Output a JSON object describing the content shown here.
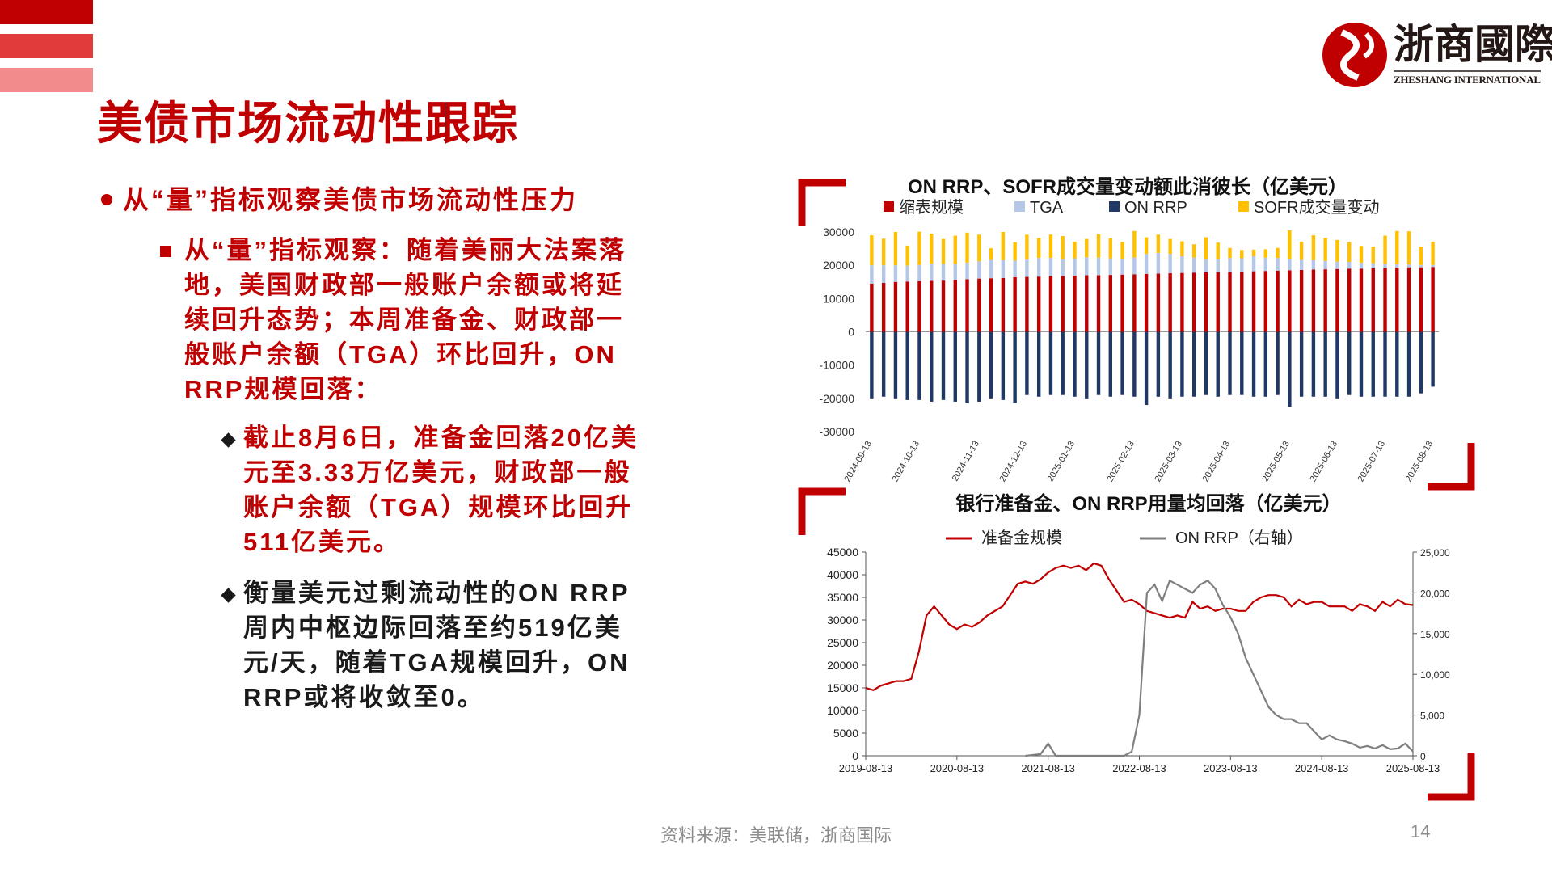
{
  "header": {
    "title": "美债市场流动性跟踪"
  },
  "logo": {
    "name": "浙商國際",
    "subtitle": "ZHESHANG INTERNATIONAL"
  },
  "bullets": {
    "heading": "从“量”指标观察美债市场流动性压力",
    "point": "从“量”指标观察：随着美丽大法案落地，美国财政部一般账户余额或将延续回升态势；本周准备金、财政部一般账户余额（TGA）环比回升，ON RRP规模回落：",
    "details": [
      "截止8月6日，准备金回落20亿美元至3.33万亿美元，财政部一般账户余额（TGA）规模环比回升511亿美元。",
      "衡量美元过剩流动性的ON RRP周内中枢边际回落至约519亿美元/天，随着TGA规模回升，ON RRP或将收敛至0。"
    ]
  },
  "chart_data": [
    {
      "type": "bar",
      "stacked": true,
      "grid": false,
      "title": "ON RRP、SOFR成交量变动额此消彼长（亿美元）",
      "categories": [
        "2024-09-13",
        null,
        null,
        null,
        "2024-10-13",
        null,
        null,
        null,
        null,
        "2024-11-13",
        null,
        null,
        null,
        "2024-12-13",
        null,
        null,
        null,
        "2025-01-13",
        null,
        null,
        null,
        null,
        "2025-02-13",
        null,
        null,
        null,
        "2025-03-13",
        null,
        null,
        null,
        "2025-04-13",
        null,
        null,
        null,
        null,
        "2025-05-13",
        null,
        null,
        null,
        "2025-06-13",
        null,
        null,
        null,
        "2025-07-13",
        null,
        null,
        null,
        "2025-08-13"
      ],
      "series": [
        {
          "name": "缩表规模",
          "color": "#c00000",
          "values": [
            14500,
            14700,
            15000,
            15100,
            15200,
            15300,
            15400,
            15600,
            15800,
            16000,
            16100,
            16200,
            16400,
            16500,
            16600,
            16700,
            16800,
            16900,
            17000,
            17000,
            17100,
            17200,
            17300,
            17400,
            17500,
            17600,
            17700,
            17800,
            17900,
            18000,
            18000,
            18100,
            18200,
            18300,
            18400,
            18500,
            18600,
            18700,
            18800,
            18900,
            19000,
            19000,
            19100,
            19200,
            19300,
            19400,
            19400,
            19500
          ]
        },
        {
          "name": "TGA",
          "color": "#b4c7e7",
          "values": [
            5500,
            5300,
            5000,
            4800,
            4900,
            5200,
            5000,
            4800,
            5000,
            5200,
            5500,
            5300,
            5000,
            5200,
            5600,
            5500,
            5000,
            5200,
            5400,
            5300,
            5000,
            4800,
            5000,
            6000,
            6200,
            5800,
            5000,
            4500,
            4000,
            3800,
            4200,
            4000,
            4500,
            4000,
            3800,
            3500,
            3000,
            2800,
            2500,
            2200,
            2000,
            1800,
            1500,
            1200,
            1000,
            800,
            700,
            600
          ]
        },
        {
          "name": "ON RRP",
          "color": "#1f3864",
          "values": [
            -20000,
            -19500,
            -20000,
            -20500,
            -20500,
            -21000,
            -20500,
            -21000,
            -21500,
            -21000,
            -20000,
            -20500,
            -21500,
            -19000,
            -19500,
            -19000,
            -19000,
            -19500,
            -20000,
            -19000,
            -19500,
            -19000,
            -19500,
            -22000,
            -19500,
            -20000,
            -19500,
            -19500,
            -19000,
            -19500,
            -19000,
            -19000,
            -19500,
            -19500,
            -19000,
            -22500,
            -19500,
            -19500,
            -19500,
            -20000,
            -19000,
            -19500,
            -19500,
            -19500,
            -19500,
            -19500,
            -18500,
            -16500
          ]
        },
        {
          "name": "SOFR成交量变动",
          "color": "#ffc000",
          "values": [
            9000,
            8000,
            10000,
            6000,
            10000,
            9000,
            7500,
            8500,
            9000,
            8000,
            3500,
            8500,
            5500,
            7500,
            6000,
            7000,
            7000,
            5000,
            5500,
            7000,
            6000,
            5000,
            8000,
            5000,
            5500,
            4500,
            4500,
            4000,
            6500,
            5000,
            3000,
            2500,
            2000,
            2500,
            3000,
            8500,
            5500,
            7500,
            7000,
            6500,
            6000,
            5000,
            5000,
            8500,
            10000,
            10000,
            5500,
            7000
          ]
        }
      ],
      "ylim": [
        -30000,
        30000
      ],
      "yticks": [
        -30000,
        -20000,
        -10000,
        0,
        10000,
        20000,
        30000
      ]
    },
    {
      "type": "line",
      "grid": false,
      "title": "银行准备金、ON RRP用量均回落（亿美元）",
      "x": [
        "2019-08-13",
        "2019-09-13",
        "2019-10-13",
        "2019-11-13",
        "2019-12-13",
        "2020-01-13",
        "2020-02-13",
        "2020-03-13",
        "2020-04-13",
        "2020-05-13",
        "2020-06-13",
        "2020-07-13",
        "2020-08-13",
        "2020-09-13",
        "2020-10-13",
        "2020-11-13",
        "2020-12-13",
        "2021-01-13",
        "2021-02-13",
        "2021-03-13",
        "2021-04-13",
        "2021-05-13",
        "2021-06-13",
        "2021-07-13",
        "2021-08-13",
        "2021-09-13",
        "2021-10-13",
        "2021-11-13",
        "2021-12-13",
        "2022-01-13",
        "2022-02-13",
        "2022-03-13",
        "2022-04-13",
        "2022-05-13",
        "2022-06-13",
        "2022-07-13",
        "2022-08-13",
        "2022-09-13",
        "2022-10-13",
        "2022-11-13",
        "2022-12-13",
        "2023-01-13",
        "2023-02-13",
        "2023-03-13",
        "2023-04-13",
        "2023-05-13",
        "2023-06-13",
        "2023-07-13",
        "2023-08-13",
        "2023-09-13",
        "2023-10-13",
        "2023-11-13",
        "2023-12-13",
        "2024-01-13",
        "2024-02-13",
        "2024-03-13",
        "2024-04-13",
        "2024-05-13",
        "2024-06-13",
        "2024-07-13",
        "2024-08-13",
        "2024-09-13",
        "2024-10-13",
        "2024-11-13",
        "2024-12-13",
        "2025-01-13",
        "2025-02-13",
        "2025-03-13",
        "2025-04-13",
        "2025-05-13",
        "2025-06-13",
        "2025-07-13",
        "2025-08-13"
      ],
      "series": [
        {
          "name": "准备金规模",
          "color": "#c00000",
          "values": [
            15000,
            14500,
            15500,
            16000,
            16500,
            16500,
            17000,
            23000,
            31000,
            33000,
            31000,
            29000,
            28000,
            29000,
            28500,
            29500,
            31000,
            32000,
            33000,
            35500,
            38000,
            38500,
            38000,
            39000,
            40500,
            41500,
            42000,
            41500,
            42000,
            41000,
            42500,
            42000,
            39000,
            36500,
            34000,
            34500,
            33500,
            32000,
            31500,
            31000,
            30500,
            31000,
            30500,
            34000,
            32500,
            33000,
            32000,
            32500,
            32500,
            32000,
            32000,
            34000,
            35000,
            35500,
            35500,
            35000,
            33000,
            34500,
            33500,
            34000,
            34000,
            33000,
            33000,
            33000,
            32000,
            33500,
            33000,
            32000,
            34000,
            33000,
            34500,
            33500,
            33300
          ]
        },
        {
          "name": "ON RRP（右轴）",
          "color": "#7f7f7f",
          "axis": "y2",
          "values": [
            null,
            null,
            null,
            null,
            null,
            null,
            null,
            null,
            null,
            null,
            null,
            null,
            null,
            null,
            null,
            null,
            null,
            null,
            null,
            null,
            null,
            0,
            100,
            200,
            1500,
            0,
            0,
            0,
            0,
            0,
            0,
            0,
            0,
            0,
            0,
            500,
            5000,
            20000,
            21000,
            19000,
            21500,
            21000,
            20500,
            20000,
            21000,
            21500,
            20500,
            18500,
            17000,
            15000,
            12000,
            10000,
            8000,
            6000,
            5000,
            4500,
            4500,
            4000,
            4000,
            3000,
            2000,
            2500,
            2000,
            1800,
            1500,
            1000,
            1200,
            900,
            1300,
            800,
            900,
            1500,
            519
          ]
        }
      ],
      "xticks": [
        "2019-08-13",
        "2020-08-13",
        "2021-08-13",
        "2022-08-13",
        "2023-08-13",
        "2024-08-13",
        "2025-08-13"
      ],
      "ylim": [
        0,
        45000
      ],
      "yticks": [
        0,
        5000,
        10000,
        15000,
        20000,
        25000,
        30000,
        35000,
        40000,
        45000
      ],
      "y2lim": [
        0,
        25000
      ],
      "y2ticks": [
        0,
        {
          "value": 5000,
          "label": "5,000"
        },
        {
          "value": 10000,
          "label": "10,000"
        },
        {
          "value": 15000,
          "label": "15,000"
        },
        {
          "value": 20000,
          "label": "20,000"
        },
        {
          "value": 25000,
          "label": "25,000"
        }
      ]
    }
  ],
  "footer": {
    "source": "资料来源：美联储，浙商国际",
    "page": "14"
  }
}
